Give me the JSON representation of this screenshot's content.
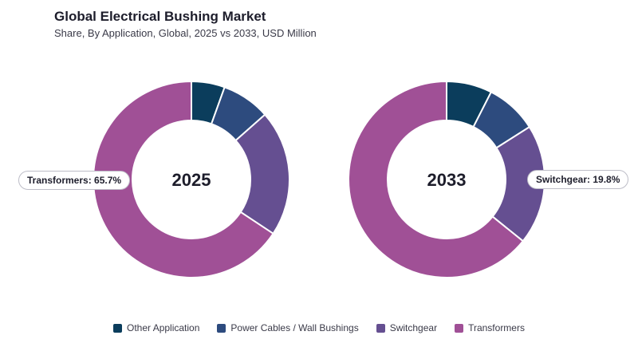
{
  "title": "Global Electrical Bushing Market",
  "subtitle": "Share, By Application, Global, 2025 vs 2033, USD Million",
  "chart_data": {
    "type": "pie",
    "categories": [
      "Other Application",
      "Power Cables / Wall Bushings",
      "Switchgear",
      "Transformers"
    ],
    "colors": [
      "#0b3d5c",
      "#2d4b7e",
      "#654f91",
      "#a05096"
    ],
    "charts": [
      {
        "center_label": "2025",
        "values": [
          5.5,
          8.0,
          20.8,
          65.7
        ],
        "callout": "Transformers: 65.7%"
      },
      {
        "center_label": "2033",
        "values": [
          7.5,
          8.5,
          19.8,
          64.2
        ],
        "callout": "Switchgear: 19.8%"
      }
    ]
  }
}
